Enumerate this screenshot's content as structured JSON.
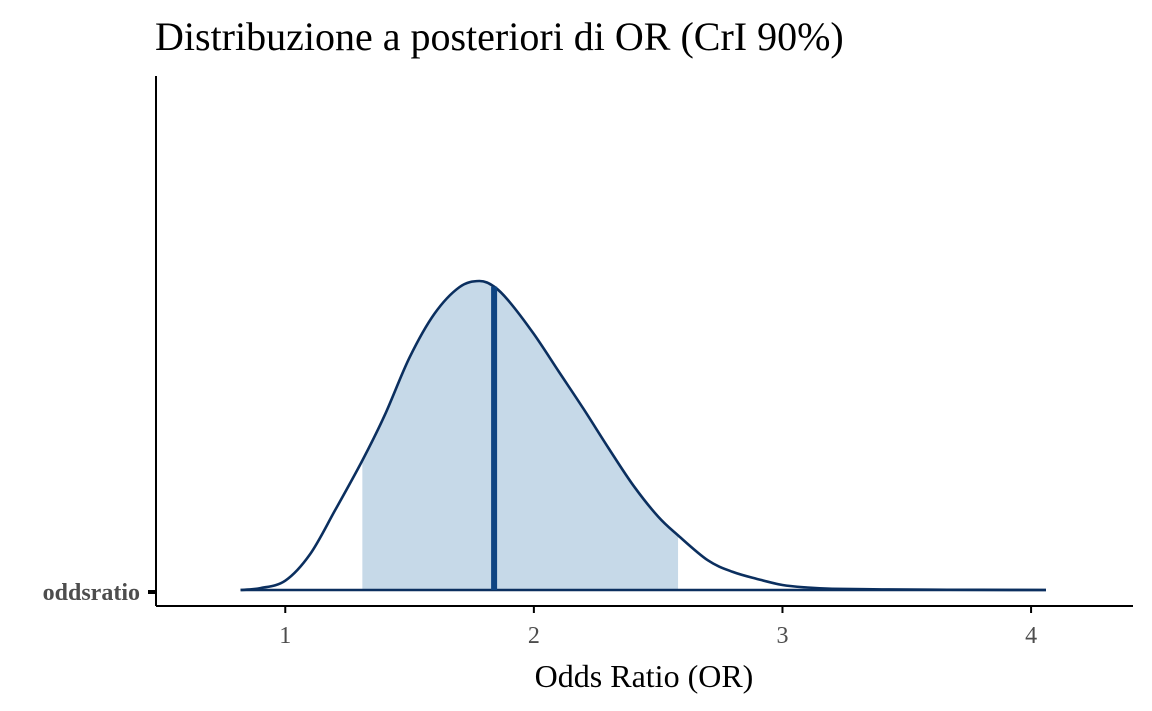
{
  "chart_data": {
    "type": "area",
    "title": "Distribuzione a posteriori di OR (CrI 90%)",
    "xlabel": "Odds Ratio (OR)",
    "ylabel": "",
    "x_ticks": [
      1,
      2,
      3,
      4
    ],
    "x_tick_labels": [
      "1",
      "2",
      "3",
      "4"
    ],
    "xlim": [
      0.48,
      4.41
    ],
    "y_categories": [
      "oddsratio"
    ],
    "interval_level": "90%",
    "interval": [
      1.31,
      2.58
    ],
    "median": 1.84,
    "density": {
      "x": [
        0.82,
        0.9,
        1.0,
        1.1,
        1.2,
        1.31,
        1.4,
        1.5,
        1.6,
        1.7,
        1.78,
        1.84,
        1.9,
        2.0,
        2.1,
        2.2,
        2.3,
        2.4,
        2.5,
        2.58,
        2.7,
        2.8,
        2.9,
        3.0,
        3.1,
        3.2,
        3.4,
        3.6,
        3.8,
        4.06
      ],
      "y": [
        0.0,
        0.006,
        0.03,
        0.115,
        0.255,
        0.415,
        0.56,
        0.745,
        0.885,
        0.97,
        0.99,
        0.972,
        0.925,
        0.82,
        0.7,
        0.58,
        0.455,
        0.335,
        0.235,
        0.175,
        0.095,
        0.058,
        0.035,
        0.016,
        0.008,
        0.004,
        0.002,
        0.001,
        0.0005,
        0.0
      ]
    },
    "colors": {
      "outline": "#0b2f5f",
      "fill": "#c6d9e8",
      "median_line": "#0e4482"
    },
    "grid": false
  }
}
